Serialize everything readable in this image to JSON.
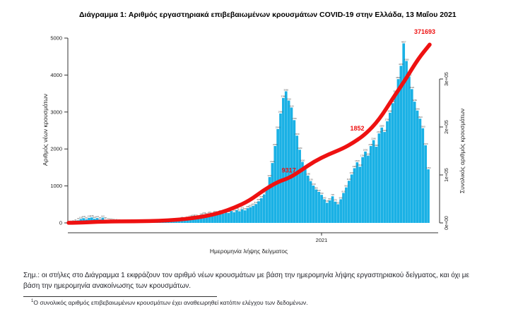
{
  "title": "Διάγραμμα 1: Αριθμός εργαστηριακά επιβεβαιωμένων κρουσμάτων COVID-19 στην Ελλάδα, 13 Μαΐου 2021",
  "note": "Σημ.: οι στήλες στο Διάγραμμα 1 εκφράζουν τον αριθμό νέων κρουσμάτων με βάση την ημερομηνία λήψης εργαστηριακού δείγματος, και όχι με βάση την ημερομηνία ανακοίνωσης των κρουσμάτων.",
  "footnote_sup": "1",
  "footnote": "Ο συνολικός αριθμός επιβεβαιωμένων κρουσμάτων έχει αναθεωρηθεί κατόπιν ελέγχου των δεδομένων.",
  "chart_data": {
    "type": "bar",
    "title": "Διάγραμμα 1: Αριθμός εργαστηριακά επιβεβαιωμένων κρουσμάτων COVID-19 στην Ελλάδα, 13 Μαΐου 2021",
    "xlabel": "Ημερομηνία λήψης δείγματος",
    "ylabel_left": "Αριθμός νέων κρουσμάτων",
    "ylabel_right": "Συνολικός αριθμός κρουσμάτων",
    "x_tick_labels": [
      "2021"
    ],
    "y_left_ticks": [
      "0",
      "1000",
      "2000",
      "3000",
      "4000",
      "5000"
    ],
    "y_right_ticks": [
      "0e+00",
      "1e+05",
      "2e+05",
      "3e+05"
    ],
    "ylim_left": [
      0,
      5000
    ],
    "ylim_right": [
      0,
      300000
    ],
    "grid": false,
    "legend": null,
    "bar_color": "#1AB1E5",
    "line_color": "#EE1111",
    "annotation_color": "#EE1111",
    "series": [
      {
        "name": "daily-new-cases",
        "type": "bar",
        "values": [
          4,
          15,
          35,
          70,
          105,
          128,
          96,
          135,
          148,
          112,
          131,
          95,
          142,
          88,
          74,
          60,
          52,
          41,
          33,
          24,
          16,
          10,
          14,
          8,
          12,
          9,
          15,
          11,
          18,
          13,
          22,
          17,
          24,
          19,
          28,
          33,
          27,
          41,
          52,
          64,
          81,
          97,
          86,
          110,
          135,
          158,
          172,
          148,
          196,
          228,
          204,
          246,
          215,
          262,
          238,
          284,
          252,
          305,
          268,
          322,
          290,
          348,
          315,
          372,
          340,
          398,
          425,
          462,
          510,
          585,
          668,
          772,
          905,
          1240,
          1620,
          2080,
          2540,
          2960,
          3380,
          3560,
          3310,
          3120,
          2780,
          2360,
          1980,
          1650,
          1450,
          1280,
          1130,
          1010,
          905,
          840,
          760,
          640,
          545,
          610,
          720,
          575,
          505,
          640,
          810,
          960,
          1140,
          1310,
          1480,
          1640,
          1520,
          1780,
          1930,
          1820,
          2080,
          2240,
          2060,
          2420,
          2580,
          2460,
          2750,
          2980,
          3240,
          3520,
          3890,
          4250,
          4857,
          4380,
          3960,
          3620,
          3280,
          3040,
          2820,
          2560,
          2100,
          1450
        ]
      },
      {
        "name": "cumulative-cases",
        "type": "line",
        "points": [
          [
            0,
            100
          ],
          [
            0.04,
            900
          ],
          [
            0.08,
            2200
          ],
          [
            0.12,
            2900
          ],
          [
            0.16,
            3200
          ],
          [
            0.2,
            3500
          ],
          [
            0.25,
            4200
          ],
          [
            0.3,
            6500
          ],
          [
            0.34,
            9500
          ],
          [
            0.38,
            14000
          ],
          [
            0.42,
            21000
          ],
          [
            0.46,
            32000
          ],
          [
            0.5,
            46000
          ],
          [
            0.54,
            68000
          ],
          [
            0.58,
            86000
          ],
          [
            0.61,
            93200
          ],
          [
            0.645,
            110000
          ],
          [
            0.68,
            128000
          ],
          [
            0.72,
            143000
          ],
          [
            0.76,
            155000
          ],
          [
            0.79,
            168000
          ],
          [
            0.823,
            185200
          ],
          [
            0.86,
            215000
          ],
          [
            0.9,
            262000
          ],
          [
            0.934,
            300000
          ],
          [
            0.968,
            342000
          ],
          [
            1,
            371693
          ]
        ]
      }
    ],
    "annotations": [
      {
        "text": "9317",
        "t": 0.61,
        "value": 93200
      },
      {
        "text": "1852",
        "t": 0.823,
        "value": 185200
      },
      {
        "text": "371693",
        "t": 1.0,
        "value": 371693
      }
    ]
  }
}
